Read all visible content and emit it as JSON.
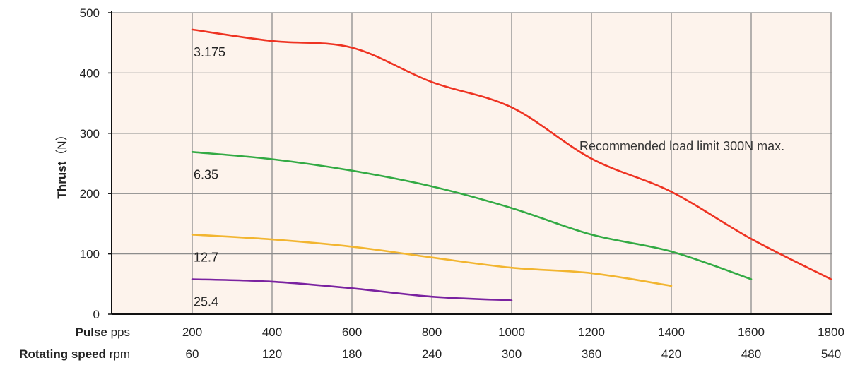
{
  "chart_data": {
    "type": "line",
    "ylabel": "Thrust（N）",
    "ylim": [
      0,
      500
    ],
    "yticks": [
      0,
      100,
      200,
      300,
      400,
      500
    ],
    "x_axes": [
      {
        "name_bold": "Pulse",
        "unit": "pps",
        "ticks": [
          "200",
          "400",
          "600",
          "800",
          "1000",
          "1200",
          "1400",
          "1600",
          "1800"
        ]
      },
      {
        "name_bold": "Rotating speed",
        "unit": "rpm",
        "ticks": [
          "60",
          "120",
          "180",
          "240",
          "300",
          "360",
          "420",
          "480",
          "540"
        ]
      }
    ],
    "xlim": [
      200,
      1800
    ],
    "grid": true,
    "background": "#fdf3ec",
    "grid_color": "#8c8c8c",
    "annotation": "Recommended load limit 300N max.",
    "series": [
      {
        "name": "3.175",
        "color": "#ee3322",
        "points": [
          [
            200,
            472
          ],
          [
            400,
            453
          ],
          [
            600,
            442
          ],
          [
            800,
            385
          ],
          [
            1000,
            343
          ],
          [
            1200,
            258
          ],
          [
            1400,
            203
          ],
          [
            1600,
            125
          ],
          [
            1800,
            58
          ]
        ]
      },
      {
        "name": "6.35",
        "color": "#33aa44",
        "points": [
          [
            200,
            269
          ],
          [
            400,
            257
          ],
          [
            600,
            238
          ],
          [
            800,
            212
          ],
          [
            1000,
            176
          ],
          [
            1200,
            132
          ],
          [
            1400,
            104
          ],
          [
            1600,
            58
          ]
        ]
      },
      {
        "name": "12.7",
        "color": "#f2b530",
        "points": [
          [
            200,
            132
          ],
          [
            400,
            124
          ],
          [
            600,
            112
          ],
          [
            800,
            94
          ],
          [
            1000,
            77
          ],
          [
            1200,
            68
          ],
          [
            1400,
            47
          ]
        ]
      },
      {
        "name": "25.4",
        "color": "#7a22a0",
        "points": [
          [
            200,
            58
          ],
          [
            400,
            54
          ],
          [
            600,
            43
          ],
          [
            800,
            29
          ],
          [
            1000,
            23
          ]
        ]
      }
    ]
  }
}
